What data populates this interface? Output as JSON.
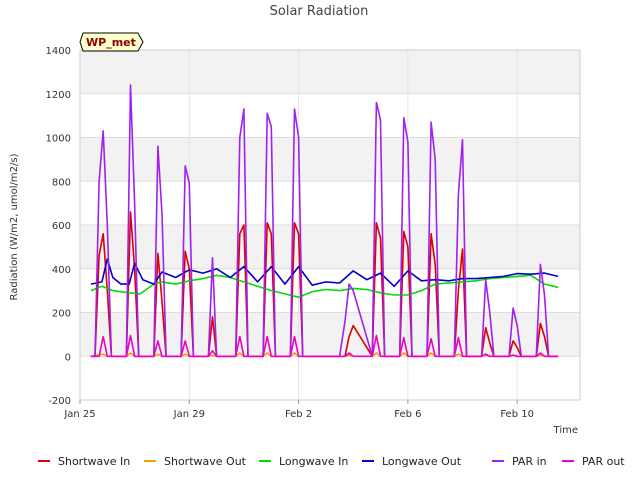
{
  "chart_data": {
    "type": "line",
    "title": "Solar Radiation",
    "xlabel": "Time",
    "ylabel": "Radiation (W/m2, umol/m2/s)",
    "site_label": "WP_met",
    "ylim": [
      -200,
      1400
    ],
    "yticks": [
      -200,
      0,
      200,
      400,
      600,
      800,
      1000,
      1200,
      1400
    ],
    "xlim": [
      0,
      18.3
    ],
    "xticks": [
      {
        "value": 0,
        "label": "Jan 25"
      },
      {
        "value": 4,
        "label": "Jan 29"
      },
      {
        "value": 8,
        "label": "Feb 2"
      },
      {
        "value": 12,
        "label": "Feb 6"
      },
      {
        "value": 16,
        "label": "Feb 10"
      }
    ],
    "grid": true,
    "legend_position": "bottom",
    "series": [
      {
        "name": "Shortwave In",
        "color": "#dd0000",
        "peaks": [
          560,
          670,
          510,
          470,
          210,
          600,
          620,
          620,
          0,
          140,
          620,
          590,
          570,
          490,
          150,
          80,
          160,
          220
        ],
        "x": [
          0.4,
          0.55,
          0.7,
          0.85,
          1.0,
          1.15,
          1.4,
          1.7,
          1.85,
          2.0,
          2.15,
          2.3,
          2.7,
          2.85,
          3.0,
          3.15,
          3.7,
          3.85,
          4.0,
          4.15,
          4.7,
          4.85,
          5.0,
          5.7,
          5.85,
          6.0,
          6.15,
          6.7,
          6.85,
          7.0,
          7.15,
          7.7,
          7.85,
          8.0,
          8.15,
          9.5,
          9.7,
          9.85,
          10.0,
          10.7,
          10.85,
          11.0,
          11.15,
          11.7,
          11.85,
          12.0,
          12.15,
          12.7,
          12.85,
          13.0,
          13.15,
          13.7,
          13.85,
          14.0,
          14.15,
          14.7,
          14.85,
          15.0,
          15.15,
          15.7,
          15.85,
          16.0,
          16.15,
          16.7,
          16.85,
          17.0,
          17.15,
          17.5
        ],
        "y": [
          0,
          0,
          460,
          560,
          300,
          0,
          0,
          0,
          660,
          400,
          0,
          0,
          0,
          470,
          250,
          0,
          0,
          480,
          400,
          0,
          0,
          180,
          0,
          0,
          560,
          600,
          0,
          0,
          610,
          560,
          0,
          0,
          610,
          560,
          0,
          0,
          0,
          90,
          140,
          0,
          610,
          540,
          0,
          0,
          570,
          500,
          0,
          0,
          560,
          420,
          0,
          0,
          300,
          490,
          0,
          0,
          130,
          60,
          0,
          0,
          70,
          40,
          0,
          0,
          150,
          90,
          0,
          0
        ]
      },
      {
        "name": "Shortwave Out",
        "color": "#f0a000",
        "x": [
          0.4,
          0.85,
          1.0,
          1.7,
          1.85,
          2.0,
          2.7,
          2.85,
          3.0,
          3.7,
          3.85,
          4.0,
          4.7,
          4.85,
          5.0,
          5.7,
          5.85,
          6.0,
          6.7,
          6.85,
          7.0,
          7.7,
          7.85,
          8.0,
          9.7,
          9.85,
          10.0,
          10.7,
          10.85,
          11.0,
          11.7,
          11.85,
          12.0,
          12.7,
          12.85,
          13.0,
          13.7,
          13.85,
          14.0,
          14.7,
          14.85,
          15.0,
          15.7,
          15.85,
          16.0,
          16.7,
          16.85,
          17.0,
          17.5
        ],
        "y": [
          0,
          10,
          0,
          0,
          15,
          0,
          0,
          10,
          0,
          0,
          10,
          0,
          0,
          5,
          0,
          0,
          15,
          0,
          0,
          15,
          0,
          0,
          15,
          0,
          0,
          5,
          0,
          0,
          15,
          0,
          0,
          15,
          0,
          0,
          15,
          0,
          0,
          10,
          0,
          0,
          5,
          0,
          0,
          5,
          0,
          0,
          5,
          0,
          0
        ]
      },
      {
        "name": "Longwave In",
        "color": "#00dd00",
        "x": [
          0.4,
          0.8,
          1.2,
          1.8,
          2.2,
          2.7,
          3.0,
          3.5,
          4.0,
          4.5,
          5.0,
          5.5,
          6.0,
          6.5,
          7.0,
          7.5,
          8.0,
          8.5,
          9.0,
          9.5,
          10.0,
          10.5,
          11.0,
          11.5,
          12.0,
          12.5,
          13.0,
          13.5,
          14.0,
          14.5,
          15.0,
          15.5,
          16.0,
          16.5,
          17.0,
          17.5
        ],
        "y": [
          300,
          320,
          300,
          290,
          285,
          330,
          340,
          330,
          345,
          355,
          370,
          360,
          340,
          320,
          300,
          285,
          270,
          295,
          305,
          300,
          310,
          305,
          290,
          280,
          280,
          300,
          330,
          335,
          340,
          345,
          355,
          360,
          365,
          370,
          330,
          315
        ]
      },
      {
        "name": "Longwave Out",
        "color": "#0000cc",
        "x": [
          0.4,
          0.8,
          1.0,
          1.2,
          1.5,
          1.8,
          2.0,
          2.3,
          2.7,
          3.0,
          3.5,
          4.0,
          4.5,
          5.0,
          5.5,
          6.0,
          6.5,
          7.0,
          7.5,
          8.0,
          8.5,
          9.0,
          9.5,
          10.0,
          10.5,
          11.0,
          11.5,
          12.0,
          12.5,
          13.0,
          13.5,
          14.0,
          14.5,
          15.0,
          15.5,
          16.0,
          16.5,
          17.0,
          17.5
        ],
        "y": [
          330,
          340,
          445,
          360,
          330,
          330,
          425,
          350,
          330,
          385,
          360,
          395,
          380,
          400,
          360,
          410,
          340,
          410,
          330,
          410,
          325,
          340,
          335,
          390,
          350,
          380,
          320,
          390,
          345,
          350,
          345,
          355,
          355,
          360,
          365,
          378,
          375,
          380,
          365
        ]
      },
      {
        "name": "PAR in",
        "color": "#a020f0",
        "peaks": [
          1030,
          1250,
          960,
          880,
          470,
          1130,
          1120,
          1130,
          350,
          1160,
          1090,
          1070,
          990,
          350,
          220,
          420,
          730
        ],
        "x": [
          0.4,
          0.55,
          0.7,
          0.85,
          1.0,
          1.15,
          1.4,
          1.7,
          1.85,
          2.0,
          2.15,
          2.3,
          2.7,
          2.85,
          3.0,
          3.15,
          3.7,
          3.85,
          4.0,
          4.15,
          4.7,
          4.85,
          5.0,
          5.7,
          5.85,
          6.0,
          6.15,
          6.7,
          6.85,
          7.0,
          7.15,
          7.7,
          7.85,
          8.0,
          8.15,
          9.5,
          9.7,
          9.85,
          10.0,
          10.7,
          10.85,
          11.0,
          11.15,
          11.7,
          11.85,
          12.0,
          12.15,
          12.7,
          12.85,
          13.0,
          13.15,
          13.7,
          13.85,
          14.0,
          14.15,
          14.7,
          14.85,
          15.0,
          15.15,
          15.7,
          15.85,
          16.0,
          16.15,
          16.7,
          16.85,
          17.0,
          17.15,
          17.5
        ],
        "y": [
          0,
          0,
          800,
          1030,
          600,
          0,
          0,
          0,
          1240,
          700,
          0,
          0,
          0,
          960,
          650,
          0,
          0,
          870,
          790,
          0,
          0,
          450,
          0,
          0,
          1000,
          1130,
          0,
          0,
          1110,
          1050,
          0,
          0,
          1130,
          1000,
          0,
          0,
          160,
          330,
          300,
          0,
          1160,
          1080,
          0,
          0,
          1090,
          980,
          0,
          0,
          1070,
          900,
          0,
          0,
          740,
          990,
          0,
          0,
          350,
          200,
          0,
          0,
          220,
          140,
          0,
          0,
          420,
          280,
          0,
          0
        ]
      },
      {
        "name": "PAR out",
        "color": "#ee00cc",
        "x": [
          0.4,
          0.7,
          0.85,
          1.0,
          1.7,
          1.85,
          2.0,
          2.7,
          2.85,
          3.0,
          3.7,
          3.85,
          4.0,
          4.7,
          4.85,
          5.0,
          5.7,
          5.85,
          6.0,
          6.7,
          6.85,
          7.0,
          7.7,
          7.85,
          8.0,
          9.7,
          9.85,
          10.0,
          10.7,
          10.85,
          11.0,
          11.7,
          11.85,
          12.0,
          12.7,
          12.85,
          13.0,
          13.7,
          13.85,
          14.0,
          14.7,
          14.85,
          15.0,
          15.7,
          15.85,
          16.0,
          16.7,
          16.85,
          17.0,
          17.5
        ],
        "y": [
          0,
          0,
          90,
          0,
          0,
          95,
          0,
          0,
          70,
          0,
          0,
          70,
          0,
          0,
          25,
          0,
          0,
          90,
          0,
          0,
          90,
          0,
          0,
          90,
          0,
          0,
          15,
          0,
          0,
          95,
          0,
          0,
          85,
          0,
          0,
          80,
          0,
          0,
          85,
          0,
          0,
          10,
          0,
          0,
          5,
          0,
          0,
          15,
          0,
          0
        ]
      }
    ]
  }
}
